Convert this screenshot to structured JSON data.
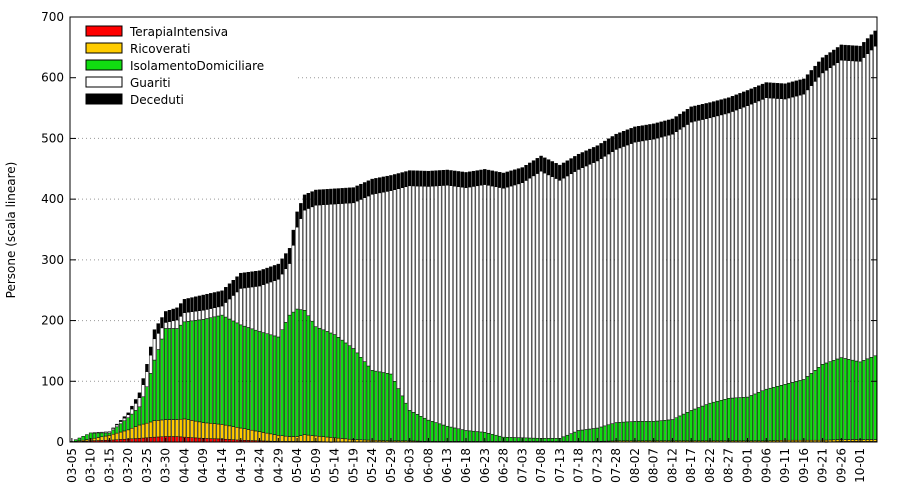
{
  "chart_data": {
    "type": "bar",
    "stacked": true,
    "ylabel": "Persone (scala lineare)",
    "xlabel": "",
    "ylim": [
      0,
      700
    ],
    "yticks": [
      0,
      100,
      200,
      300,
      400,
      500,
      600,
      700
    ],
    "grid": "horizontal-dotted",
    "legend_position": "top-left",
    "series": [
      {
        "name": "TerapiaIntensiva",
        "color": "#ff0000",
        "border": "#000000"
      },
      {
        "name": "Ricoverati",
        "color": "#ffcc00",
        "border": "#000000"
      },
      {
        "name": "IsolamentoDomiciliare",
        "color": "#11dd11",
        "border": "#000000"
      },
      {
        "name": "Guariti",
        "color": "#ffffff",
        "border": "#000000"
      },
      {
        "name": "Deceduti",
        "color": "#000000",
        "border": "#000000"
      }
    ],
    "x_tick_labels": [
      "03-05",
      "03-10",
      "03-15",
      "03-20",
      "03-25",
      "03-30",
      "04-04",
      "04-09",
      "04-14",
      "04-19",
      "04-24",
      "04-29",
      "05-04",
      "05-09",
      "05-14",
      "05-19",
      "05-24",
      "05-29",
      "06-03",
      "06-08",
      "06-13",
      "06-18",
      "06-23",
      "06-28",
      "07-03",
      "07-08",
      "07-13",
      "07-18",
      "07-23",
      "07-28",
      "08-02",
      "08-07",
      "08-12",
      "08-17",
      "08-22",
      "08-27",
      "09-01",
      "09-06",
      "09-11",
      "09-16",
      "09-21",
      "09-26",
      "10-01"
    ],
    "tick_interval_days": 5,
    "day_count": 215,
    "keypoints": {
      "day_index": [
        0,
        5,
        10,
        15,
        18,
        20,
        22,
        25,
        28,
        30,
        35,
        40,
        45,
        50,
        55,
        58,
        60,
        62,
        65,
        70,
        75,
        80,
        85,
        90,
        95,
        100,
        105,
        110,
        115,
        120,
        125,
        130,
        135,
        140,
        145,
        150,
        155,
        160,
        165,
        170,
        175,
        180,
        185,
        190,
        195,
        200,
        205,
        210,
        214
      ],
      "TerapiaIntensiva": [
        0,
        2,
        3,
        5,
        6,
        7,
        8,
        9,
        9,
        8,
        6,
        5,
        3,
        2,
        1,
        1,
        1,
        1,
        1,
        0,
        0,
        0,
        0,
        0,
        0,
        0,
        0,
        0,
        0,
        0,
        0,
        0,
        0,
        0,
        0,
        0,
        0,
        0,
        0,
        0,
        0,
        0,
        0,
        0,
        0,
        0,
        1,
        1,
        1
      ],
      "Ricoverati": [
        0,
        3,
        8,
        15,
        22,
        24,
        27,
        28,
        28,
        30,
        26,
        24,
        20,
        15,
        10,
        8,
        8,
        11,
        9,
        7,
        4,
        3,
        2,
        2,
        1,
        1,
        1,
        1,
        1,
        1,
        1,
        1,
        1,
        1,
        2,
        2,
        2,
        2,
        2,
        2,
        2,
        2,
        2,
        3,
        3,
        3,
        3,
        3,
        3
      ],
      "IsolamentoDomiciliare": [
        1,
        10,
        4,
        20,
        30,
        60,
        100,
        150,
        150,
        160,
        170,
        180,
        170,
        165,
        162,
        200,
        210,
        205,
        180,
        170,
        150,
        115,
        110,
        50,
        35,
        25,
        18,
        15,
        7,
        6,
        5,
        5,
        18,
        22,
        30,
        32,
        32,
        35,
        50,
        62,
        70,
        72,
        85,
        92,
        100,
        125,
        135,
        128,
        138
      ],
      "Guariti": [
        0,
        0,
        2,
        5,
        15,
        25,
        35,
        10,
        14,
        15,
        15,
        15,
        60,
        75,
        95,
        85,
        135,
        165,
        200,
        215,
        240,
        290,
        302,
        370,
        385,
        397,
        400,
        408,
        410,
        420,
        440,
        425,
        430,
        440,
        450,
        460,
        465,
        470,
        475,
        470,
        470,
        480,
        480,
        470,
        470,
        480,
        490,
        495,
        510
      ],
      "Deceduti": [
        0,
        0,
        0,
        3,
        8,
        12,
        15,
        18,
        20,
        22,
        25,
        25,
        25,
        25,
        25,
        25,
        25,
        25,
        25,
        25,
        25,
        25,
        25,
        25,
        25,
        25,
        25,
        25,
        25,
        25,
        25,
        25,
        25,
        25,
        25,
        25,
        25,
        25,
        25,
        25,
        25,
        25,
        25,
        25,
        25,
        25,
        25,
        25,
        25
      ]
    }
  }
}
